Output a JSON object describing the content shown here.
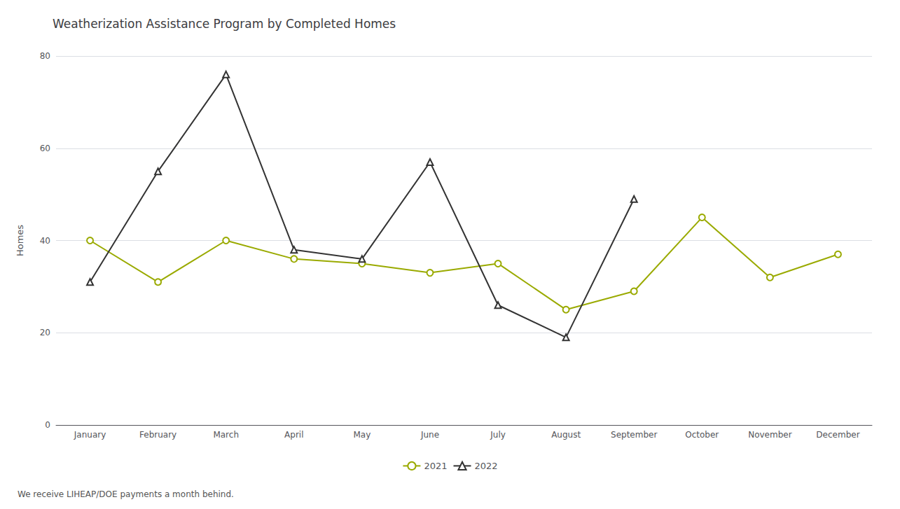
{
  "chart_data": {
    "type": "line",
    "title": "Weatherization Assistance Program by Completed Homes",
    "ylabel": "Homes",
    "footnote": "We receive LIHEAP/DOE payments a month behind.",
    "categories": [
      "January",
      "February",
      "March",
      "April",
      "May",
      "June",
      "July",
      "August",
      "September",
      "October",
      "November",
      "December"
    ],
    "series": [
      {
        "name": "2021",
        "color": "#9aaa00",
        "marker": "circle",
        "values": [
          40,
          31,
          40,
          36,
          35,
          33,
          35,
          25,
          29,
          45,
          32,
          37
        ]
      },
      {
        "name": "2022",
        "color": "#333333",
        "marker": "triangle",
        "values": [
          31,
          55,
          76,
          38,
          36,
          57,
          26,
          19,
          49,
          null,
          null,
          null
        ]
      }
    ],
    "ylim": [
      0,
      80
    ],
    "yticks": [
      0,
      20,
      40,
      60,
      80
    ],
    "grid": true,
    "legend": "bottom"
  }
}
